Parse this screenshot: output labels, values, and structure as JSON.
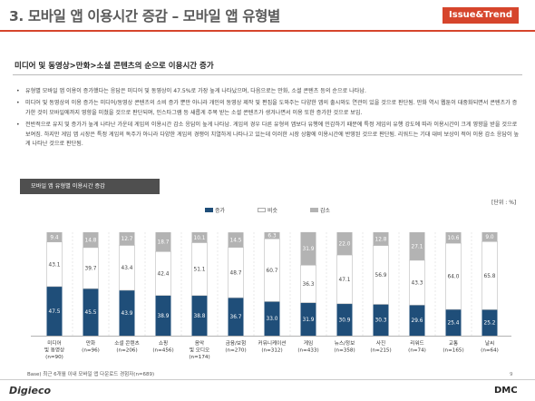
{
  "header": {
    "title": "3. 모바일 앱 이용시간 증감 – 모바일 앱 유형별",
    "brand": "Issue&Trend"
  },
  "subhead": "미디어 및 동영상>만화>소셜 콘텐츠의 순으로 이용시간 증가",
  "bullets": [
    "유형별 모바일 앱 이용이 증가했다는 응답은 미디어 및 동영상이 47.5%로 가장 높게 나타났으며, 다음으로는 만화, 소셜 콘텐츠 등의 순으로 나타남.",
    "미디어 및 동영상의 이용 증가는 미디어/동영상 콘텐츠의 소비 증가 뿐만 아니라 개인의 동영상 제작 및 편집을 도와주는 다양한 앱의 출시와도 연관이 있을 것으로 판단됨. 만화 역시 웹툰이 대중화되면서 콘텐츠가 증가한 것이 모바일에까지 영향을 미쳤을 것으로 판단되며, 인스타그램 등 새롭게 주목 받는 소셜 콘텐츠가 생겨나면서 이용 또한 증가한 것으로 보임.",
    "전반적으로 유지 및 증가가 높게 나타난 가운데 게임의 이용시간 감소 응답이 높게 나타남. 게임의 경우 다른 유형의 앱보다 유행에 민감하기 때문에 특정 게임의 유행 강도에 따라 이용시간이 크게 영향을 받을 것으로 보여짐. 하지만 게임 앱 시장은 특정 게임의 독주가 아니라 다양한 게임의 경쟁이 치열하게 나타나고 있는데 이러한 시장 상황에 이용시간에 반영된 것으로 판단됨. 리워드는 기대 대비 보상이 적어 이용 감소 응답이 높게 나타난 것으로 판단됨."
  ],
  "panel_title": "모바일 앱 유형별 이용시간 증감",
  "unit_label": "[단위 : %]",
  "base_note": "Base) 최근 6개월 이내 모바일 앱 다운로드 경험자(n=689)",
  "page_number": "9",
  "footer": {
    "left_logo": "Digieco",
    "right_logo": "DMC"
  },
  "chart_data": {
    "type": "bar",
    "stacked": true,
    "categories": [
      "미디어 및 동영상",
      "만화",
      "소셜 콘텐츠",
      "쇼핑",
      "음악 및 오디오",
      "금융/보험",
      "커뮤니케이션",
      "게임",
      "뉴스/정보",
      "사진",
      "리워드",
      "교통",
      "날씨"
    ],
    "sample_sizes": [
      "(n=90)",
      "(n=96)",
      "(n=206)",
      "(n=456)",
      "(n=174)",
      "(n=270)",
      "(n=312)",
      "(n=433)",
      "(n=358)",
      "(n=215)",
      "(n=74)",
      "(n=165)",
      "(n=64)"
    ],
    "series": [
      {
        "name": "증가",
        "color": "#1f4e79",
        "values": [
          47.5,
          45.5,
          43.9,
          38.9,
          38.8,
          36.7,
          33.0,
          31.9,
          30.9,
          30.3,
          29.6,
          25.4,
          25.2
        ]
      },
      {
        "name": "비슷",
        "color": "#ffffff",
        "values": [
          43.1,
          39.7,
          43.4,
          42.4,
          51.1,
          48.7,
          60.7,
          36.3,
          47.1,
          56.9,
          43.3,
          64.0,
          65.8
        ]
      },
      {
        "name": "감소",
        "color": "#b3b3b3",
        "values": [
          9.4,
          14.8,
          12.7,
          18.7,
          10.1,
          14.5,
          6.3,
          31.9,
          22.0,
          12.8,
          27.1,
          10.6,
          9.0
        ]
      }
    ],
    "ylim": [
      0,
      100
    ],
    "legend_position": "top-center",
    "grid": false
  }
}
